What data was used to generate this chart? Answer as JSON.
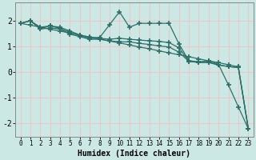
{
  "xlabel": "Humidex (Indice chaleur)",
  "background_color": "#cce8e4",
  "grid_color": "#e8c8c8",
  "line_color": "#2d7068",
  "x_values": [
    0,
    1,
    2,
    3,
    4,
    5,
    6,
    7,
    8,
    9,
    10,
    11,
    12,
    13,
    14,
    15,
    16,
    17,
    18,
    19,
    20,
    21,
    22,
    23
  ],
  "line1_y": [
    1.9,
    2.0,
    1.75,
    1.8,
    1.75,
    1.6,
    1.45,
    1.35,
    1.35,
    1.85,
    2.35,
    1.75,
    1.9,
    1.9,
    1.9,
    1.9,
    1.1,
    0.45,
    0.4,
    0.45,
    0.3,
    -0.5,
    -1.35,
    -2.2
  ],
  "line2_y": [
    1.9,
    2.0,
    1.7,
    1.8,
    1.7,
    1.55,
    1.42,
    1.32,
    1.32,
    1.28,
    1.32,
    1.28,
    1.25,
    1.22,
    1.2,
    1.15,
    0.95,
    0.42,
    0.38,
    0.38,
    0.28,
    0.22,
    0.18,
    -2.2
  ],
  "line3_y": [
    1.9,
    2.0,
    1.68,
    1.72,
    1.68,
    1.48,
    1.38,
    1.28,
    1.28,
    1.22,
    1.18,
    1.18,
    1.12,
    1.08,
    1.02,
    0.98,
    0.78,
    0.42,
    0.38,
    0.38,
    0.28,
    0.22,
    0.18,
    -2.2
  ],
  "line4_y": [
    1.9,
    1.83,
    1.75,
    1.67,
    1.6,
    1.52,
    1.44,
    1.37,
    1.29,
    1.21,
    1.14,
    1.06,
    0.98,
    0.91,
    0.83,
    0.75,
    0.68,
    0.6,
    0.52,
    0.44,
    0.37,
    0.29,
    0.21,
    -2.2
  ],
  "ylim": [
    -2.5,
    2.7
  ],
  "xlim": [
    -0.5,
    23.5
  ],
  "yticks": [
    -2,
    -1,
    0,
    1,
    2
  ],
  "xticks": [
    0,
    1,
    2,
    3,
    4,
    5,
    6,
    7,
    8,
    9,
    10,
    11,
    12,
    13,
    14,
    15,
    16,
    17,
    18,
    19,
    20,
    21,
    22,
    23
  ]
}
